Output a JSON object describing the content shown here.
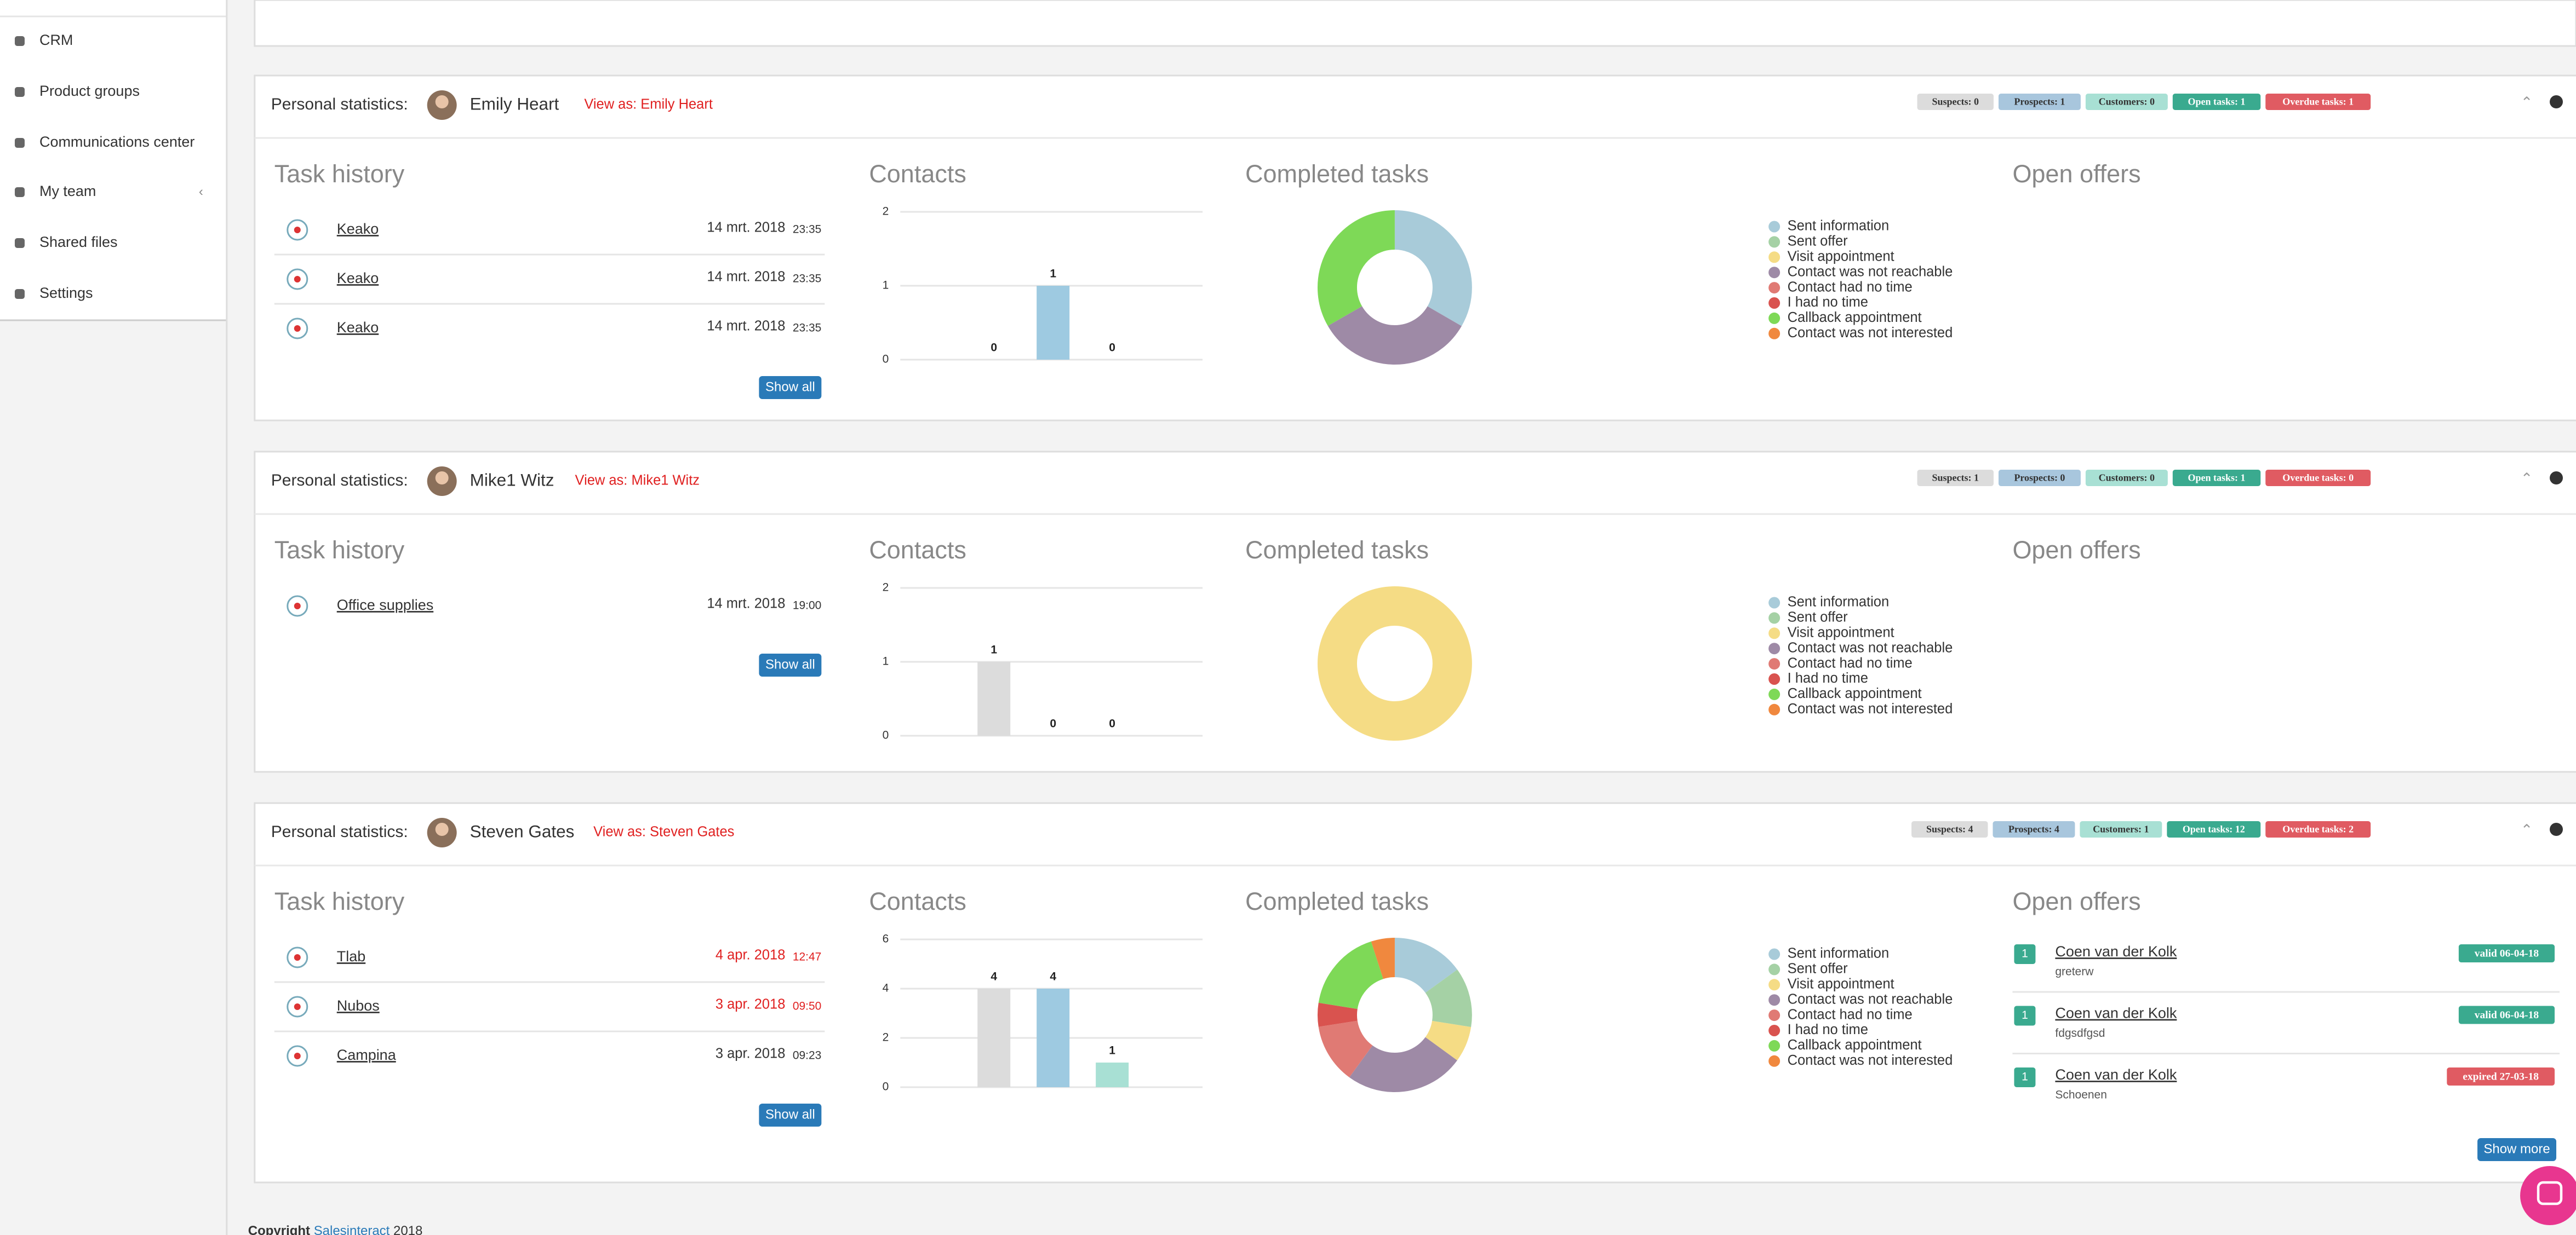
{
  "sidebar": [
    "CRM",
    "Product groups",
    "Communications center",
    "My team",
    "Shared files",
    "Settings"
  ],
  "labels": {
    "personal": "Personal statistics:",
    "task_history": "Task history",
    "open_offers": "Open offers",
    "show_all": "Show all",
    "show_more": "Show more"
  },
  "footer": {
    "prefix": "Copyright",
    "link": "Salesinteract",
    "year": "2018"
  },
  "panels": [
    {
      "name": "Emily Heart",
      "view_as": "View as: Emily Heart",
      "badges": [
        {
          "label": "Suspects: 0",
          "kind": "suspects"
        },
        {
          "label": "Prospects: 1",
          "kind": "prospects"
        },
        {
          "label": "Customers: 0",
          "kind": "customers"
        },
        {
          "label": "Open tasks: 1",
          "kind": "open"
        },
        {
          "label": "Overdue tasks: 1",
          "kind": "overdue"
        }
      ],
      "task_history": [
        {
          "name": "Keako",
          "date": "14 mrt. 2018",
          "time": "23:35",
          "overdue": false
        },
        {
          "name": "Keako",
          "date": "14 mrt. 2018",
          "time": "23:35",
          "overdue": false
        },
        {
          "name": "Keako",
          "date": "14 mrt. 2018",
          "time": "23:35",
          "overdue": false
        }
      ],
      "contacts": {
        "type": "bar",
        "title": "Contacts",
        "categories": [
          null,
          null,
          null
        ],
        "colors": [
          "#dcdcdc",
          "#9ecae1",
          "#a8e0d4"
        ],
        "values": [
          0,
          1,
          0
        ],
        "ylim": [
          0,
          2
        ],
        "yticks": [
          0,
          1,
          2
        ]
      },
      "completed": {
        "type": "pie",
        "title": "Completed tasks",
        "categories": [
          "Sent information",
          "Sent offer",
          "Visit appointment",
          "Contact was not reachable",
          "Contact had no time",
          "I had no time",
          "Callback appointment",
          "Contact was not interested"
        ],
        "colors": [
          "#a8cbd9",
          "#a5d1a5",
          "#f5dc85",
          "#9e8aa6",
          "#e07a74",
          "#d9534f",
          "#7ed957",
          "#f0883e"
        ],
        "values": [
          1,
          0,
          0,
          1,
          0,
          0,
          1,
          0
        ]
      },
      "open_offers": []
    },
    {
      "name": "Mike1 Witz",
      "view_as": "View as: Mike1 Witz",
      "badges": [
        {
          "label": "Suspects: 1",
          "kind": "suspects"
        },
        {
          "label": "Prospects: 0",
          "kind": "prospects"
        },
        {
          "label": "Customers: 0",
          "kind": "customers"
        },
        {
          "label": "Open tasks: 1",
          "kind": "open"
        },
        {
          "label": "Overdue tasks: 0",
          "kind": "overdue"
        }
      ],
      "task_history": [
        {
          "name": "Office supplies",
          "date": "14 mrt. 2018",
          "time": "19:00",
          "overdue": false
        }
      ],
      "contacts": {
        "type": "bar",
        "title": "Contacts",
        "categories": [
          null,
          null,
          null
        ],
        "colors": [
          "#dcdcdc",
          "#9ecae1",
          "#a8e0d4"
        ],
        "values": [
          1,
          0,
          0
        ],
        "ylim": [
          0,
          2
        ],
        "yticks": [
          0,
          1,
          2
        ]
      },
      "completed": {
        "type": "pie",
        "title": "Completed tasks",
        "categories": [
          "Sent information",
          "Sent offer",
          "Visit appointment",
          "Contact was not reachable",
          "Contact had no time",
          "I had no time",
          "Callback appointment",
          "Contact was not interested"
        ],
        "colors": [
          "#a8cbd9",
          "#a5d1a5",
          "#f5dc85",
          "#9e8aa6",
          "#e07a74",
          "#d9534f",
          "#7ed957",
          "#f0883e"
        ],
        "values": [
          0,
          0,
          1,
          0,
          0,
          0,
          0,
          0
        ]
      },
      "open_offers": []
    },
    {
      "name": "Steven Gates",
      "view_as": "View as: Steven Gates",
      "badges": [
        {
          "label": "Suspects: 4",
          "kind": "suspects"
        },
        {
          "label": "Prospects: 4",
          "kind": "prospects"
        },
        {
          "label": "Customers: 1",
          "kind": "customers"
        },
        {
          "label": "Open tasks: 12",
          "kind": "open"
        },
        {
          "label": "Overdue tasks: 2",
          "kind": "overdue"
        }
      ],
      "task_history": [
        {
          "name": "Tlab",
          "date": "4 apr. 2018",
          "time": "12:47",
          "overdue": true
        },
        {
          "name": "Nubos",
          "date": "3 apr. 2018",
          "time": "09:50",
          "overdue": true
        },
        {
          "name": "Campina",
          "date": "3 apr. 2018",
          "time": "09:23",
          "overdue": false
        }
      ],
      "contacts": {
        "type": "bar",
        "title": "Contacts",
        "categories": [
          null,
          null,
          null
        ],
        "colors": [
          "#dcdcdc",
          "#9ecae1",
          "#a8e0d4"
        ],
        "values": [
          4,
          4,
          1
        ],
        "ylim": [
          0,
          6
        ],
        "yticks": [
          0,
          2,
          4,
          6
        ]
      },
      "completed": {
        "type": "pie",
        "title": "Completed tasks",
        "categories": [
          "Sent information",
          "Sent offer",
          "Visit appointment",
          "Contact was not reachable",
          "Contact had no time",
          "I had no time",
          "Callback appointment",
          "Contact was not interested"
        ],
        "colors": [
          "#a8cbd9",
          "#a5d1a5",
          "#f5dc85",
          "#9e8aa6",
          "#e07a74",
          "#d9534f",
          "#7ed957",
          "#f0883e"
        ],
        "values": [
          3,
          2.5,
          1.5,
          5,
          2.5,
          1,
          3.5,
          1
        ]
      },
      "open_offers": [
        {
          "count": 1,
          "name": "Coen van der Kolk",
          "note": "greterw",
          "status": "valid 06-04-18",
          "expired": false
        },
        {
          "count": 1,
          "name": "Coen van der Kolk",
          "note": "fdgsdfgsd",
          "status": "valid 06-04-18",
          "expired": false
        },
        {
          "count": 1,
          "name": "Coen van der Kolk",
          "note": "Schoenen",
          "status": "expired 27-03-18",
          "expired": true
        }
      ]
    }
  ]
}
